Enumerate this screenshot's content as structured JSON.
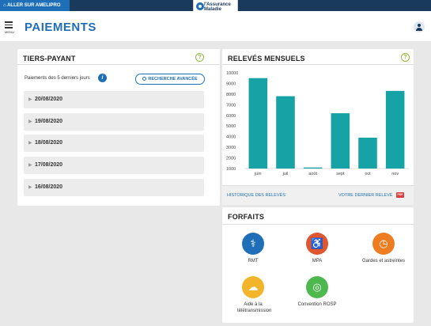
{
  "topbar": {
    "ameli_link": "ALLER SUR AMELIPRO",
    "logo_text": "l'Assurance Maladie"
  },
  "header": {
    "menu_label": "MENU",
    "title": "PAIEMENTS"
  },
  "tiers_payant": {
    "title": "TIERS-PAYANT",
    "help": "?",
    "subtitle": "Paiements des 5 derniers jours",
    "info": "i",
    "search_button": "RECHERCHE AVANCÉE",
    "dates": [
      "20/08/2020",
      "19/08/2020",
      "18/08/2020",
      "17/08/2020",
      "16/08/2020"
    ]
  },
  "releves": {
    "title": "RELEVÉS MENSUELS",
    "help": "?",
    "history_link": "HISTORIQUE DES RELEVÉS",
    "last_link": "VOTRE DERNIER RELEVÉ",
    "pdf": "PDF"
  },
  "chart_data": {
    "type": "bar",
    "categories": [
      "juin",
      "juil",
      "août",
      "sept",
      "oct",
      "nov"
    ],
    "values": [
      9500,
      7800,
      1100,
      6200,
      3900,
      8300
    ],
    "ylim": [
      1000,
      10000
    ],
    "yticks": [
      1000,
      2000,
      3000,
      4000,
      5000,
      6000,
      7000,
      8000,
      9000,
      10000
    ],
    "color": "#17a3a5",
    "grid": false
  },
  "forfaits": {
    "title": "FORFAITS",
    "items": [
      {
        "label": "RMT",
        "icon": "doctor-icon",
        "color": "#1e6fb7",
        "glyph": "⚕"
      },
      {
        "label": "MPA",
        "icon": "walking-person-icon",
        "color": "#e0562e",
        "glyph": "♿"
      },
      {
        "label": "Gardes et astreintes",
        "icon": "clock-icon",
        "color": "#ee7d22",
        "glyph": "◷"
      },
      {
        "label": "Aide à la télétransmission",
        "icon": "cloud-sync-icon",
        "color": "#f2b42a",
        "glyph": "☁"
      },
      {
        "label": "Convention ROSP",
        "icon": "target-icon",
        "color": "#4db84d",
        "glyph": "◎"
      }
    ]
  }
}
